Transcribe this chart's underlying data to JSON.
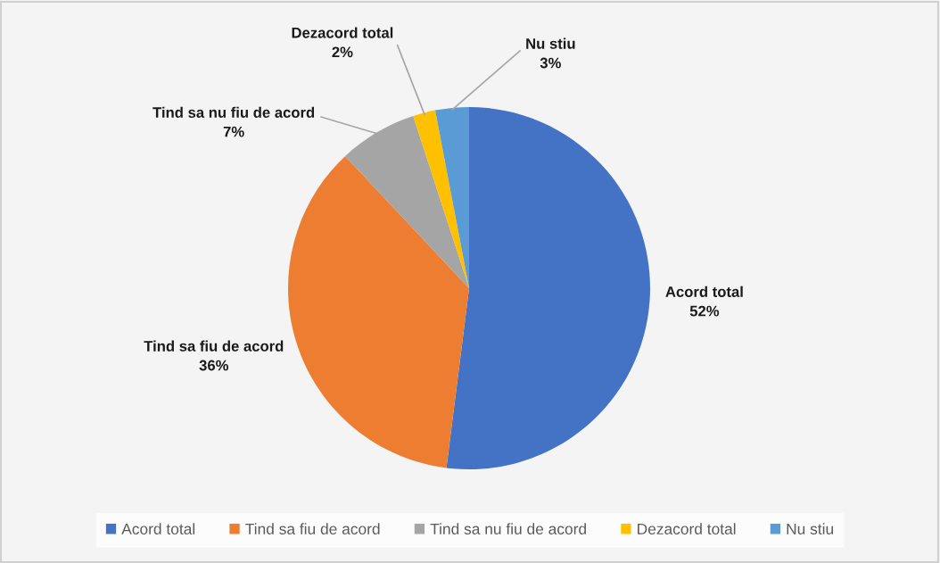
{
  "chart_data": {
    "type": "pie",
    "categories": [
      "Acord total",
      "Tind sa fiu de acord",
      "Tind sa nu fiu de acord",
      "Dezacord total",
      "Nu stiu"
    ],
    "values": [
      52,
      36,
      7,
      2,
      3
    ],
    "colors": [
      "#4472c4",
      "#ed7d31",
      "#a5a5a5",
      "#ffc000",
      "#5b9bd5"
    ],
    "value_labels": [
      "52%",
      "36%",
      "7%",
      "2%",
      "3%"
    ],
    "legend": "bottom"
  }
}
